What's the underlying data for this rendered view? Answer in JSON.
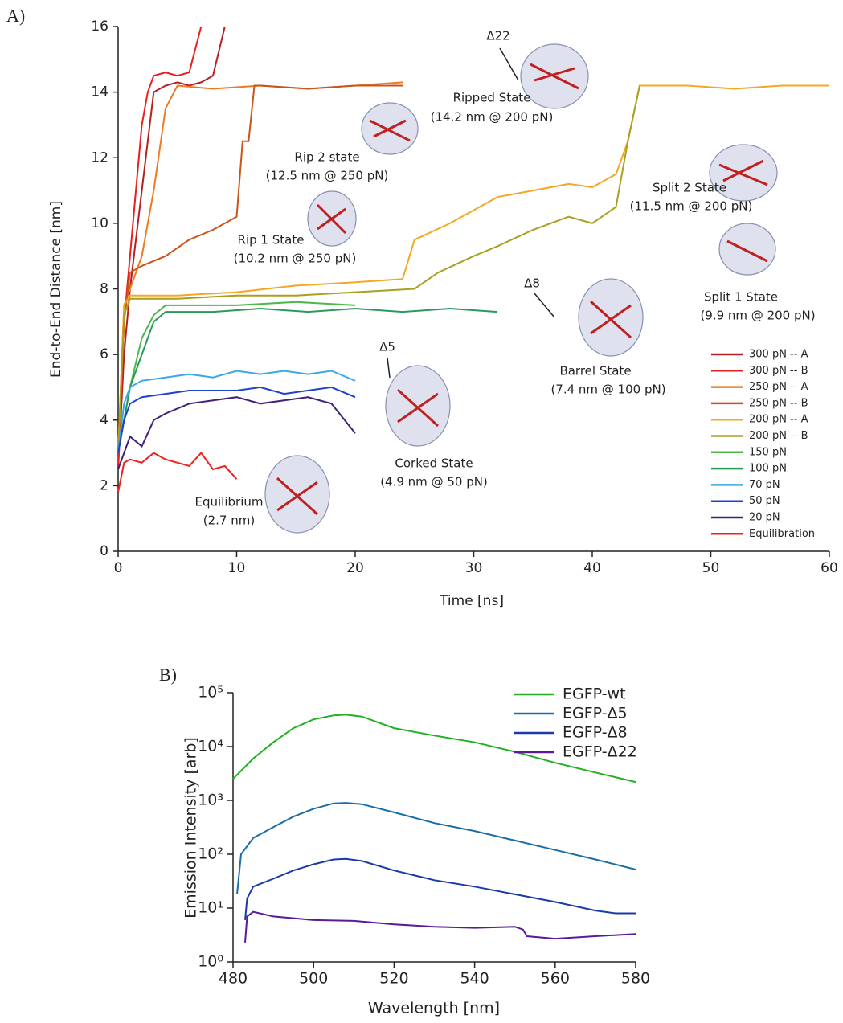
{
  "chart_data": [
    {
      "type": "line",
      "panel_label": "A)",
      "x_label": "Time [ns]",
      "y_label": "End-to-End Distance [nm]",
      "xlim": [
        0,
        60
      ],
      "xticks": [
        0,
        10,
        20,
        30,
        40,
        50,
        60
      ],
      "ylim": [
        0,
        16
      ],
      "yticks": [
        0,
        2,
        4,
        6,
        8,
        10,
        12,
        14,
        16
      ],
      "log_y": false,
      "grid": false,
      "legend": "lower right",
      "annotations": [
        "Δ22",
        "Ripped State",
        "(14.2 nm @ 200 pN)",
        "Rip 2 state",
        "(12.5 nm @ 250 pN)",
        "Rip 1 State",
        "(10.2 nm @ 250 pN)",
        "Split 2 State",
        "(11.5 nm @ 200 pN)",
        "Split 1 State",
        "(9.9 nm @ 200 pN)",
        "Δ8",
        "Barrel State",
        "(7.4 nm @ 100 pN)",
        "Δ5",
        "Corked State",
        "(4.9 nm @ 50 pN)",
        "Equilibrium",
        "(2.7 nm)"
      ],
      "series": [
        {
          "name": "300 pN -- A",
          "color": "#b52020",
          "x": [
            0,
            0.5,
            1,
            1.5,
            2,
            2.5,
            3,
            4,
            5,
            6,
            7,
            8,
            9
          ],
          "values": [
            2.5,
            6,
            8,
            9.5,
            11,
            12.5,
            14,
            14.2,
            14.3,
            14.2,
            14.3,
            14.5,
            16
          ]
        },
        {
          "name": "300 pN -- B",
          "color": "#e8201e",
          "x": [
            0,
            0.5,
            1,
            1.5,
            2,
            2.5,
            3,
            4,
            5,
            6,
            7
          ],
          "values": [
            2.5,
            7,
            9,
            11,
            13,
            14,
            14.5,
            14.6,
            14.5,
            14.6,
            16
          ]
        },
        {
          "name": "250 pN -- A",
          "color": "#f07a20",
          "x": [
            0,
            0.5,
            1,
            2,
            3,
            4,
            5,
            8,
            12,
            16,
            20,
            24
          ],
          "values": [
            3,
            7.5,
            8,
            9,
            11,
            13.5,
            14.2,
            14.1,
            14.2,
            14.1,
            14.2,
            14.3
          ]
        },
        {
          "name": "250 pN -- B",
          "color": "#c8561a",
          "x": [
            0,
            0.5,
            1,
            2,
            4,
            6,
            8,
            10,
            10.5,
            11,
            11.5,
            12,
            16,
            20,
            24
          ],
          "values": [
            3,
            7,
            8.5,
            8.7,
            9,
            9.5,
            9.8,
            10.2,
            12.5,
            12.5,
            14.2,
            14.2,
            14.1,
            14.2,
            14.2
          ]
        },
        {
          "name": "200 pN -- A",
          "color": "#f5a623",
          "x": [
            0,
            0.5,
            1,
            5,
            10,
            15,
            20,
            24,
            25,
            28,
            32,
            35,
            38,
            40,
            42,
            43,
            44,
            48,
            52,
            56,
            60
          ],
          "values": [
            3,
            7.5,
            7.8,
            7.8,
            7.9,
            8.1,
            8.2,
            8.3,
            9.5,
            10,
            10.8,
            11,
            11.2,
            11.1,
            11.5,
            12.5,
            14.2,
            14.2,
            14.1,
            14.2,
            14.2
          ]
        },
        {
          "name": "200 pN -- B",
          "color": "#a8a020",
          "x": [
            0,
            0.5,
            1,
            5,
            10,
            15,
            20,
            25,
            27,
            30,
            32,
            35,
            38,
            40,
            42,
            43,
            44
          ],
          "values": [
            3,
            7.2,
            7.7,
            7.7,
            7.8,
            7.8,
            7.9,
            8,
            8.5,
            9,
            9.3,
            9.8,
            10.2,
            10,
            10.5,
            12.5,
            14.2
          ]
        },
        {
          "name": "150 pN",
          "color": "#4cb848",
          "x": [
            0,
            1,
            2,
            3,
            4,
            6,
            10,
            15,
            20
          ],
          "values": [
            3,
            5,
            6.5,
            7.2,
            7.5,
            7.5,
            7.5,
            7.6,
            7.5
          ]
        },
        {
          "name": "100 pN",
          "color": "#2a9a5a",
          "x": [
            0,
            1,
            2,
            3,
            4,
            8,
            12,
            16,
            20,
            24,
            28,
            32
          ],
          "values": [
            3,
            5,
            6,
            7,
            7.3,
            7.3,
            7.4,
            7.3,
            7.4,
            7.3,
            7.4,
            7.3
          ]
        },
        {
          "name": "70 pN",
          "color": "#3aa8e8",
          "x": [
            0,
            0.5,
            1,
            2,
            4,
            6,
            8,
            10,
            12,
            14,
            16,
            18,
            20
          ],
          "values": [
            3,
            4.5,
            5,
            5.2,
            5.3,
            5.4,
            5.3,
            5.5,
            5.4,
            5.5,
            5.4,
            5.5,
            5.2
          ]
        },
        {
          "name": "50 pN",
          "color": "#2040d0",
          "x": [
            0,
            0.5,
            1,
            2,
            4,
            6,
            8,
            10,
            12,
            14,
            16,
            18,
            20
          ],
          "values": [
            3,
            4,
            4.5,
            4.7,
            4.8,
            4.9,
            4.9,
            4.9,
            5,
            4.8,
            4.9,
            5,
            4.7
          ]
        },
        {
          "name": "20 pN",
          "color": "#40207a",
          "x": [
            0,
            0.5,
            1,
            2,
            3,
            4,
            6,
            8,
            10,
            12,
            14,
            16,
            18,
            20
          ],
          "values": [
            2.5,
            3,
            3.5,
            3.2,
            4,
            4.2,
            4.5,
            4.6,
            4.7,
            4.5,
            4.6,
            4.7,
            4.5,
            3.6
          ]
        },
        {
          "name": "Equilibration",
          "color": "#ee2020",
          "x": [
            0,
            0.5,
            1,
            2,
            3,
            4,
            5,
            6,
            7,
            8,
            9,
            10
          ],
          "values": [
            1.8,
            2.7,
            2.8,
            2.7,
            3,
            2.8,
            2.7,
            2.6,
            3,
            2.5,
            2.6,
            2.2
          ]
        }
      ]
    },
    {
      "type": "line",
      "panel_label": "B)",
      "x_label": "Wavelength [nm]",
      "y_label": "Emission Intensity [arb]",
      "xlim": [
        480,
        580
      ],
      "xticks": [
        480,
        500,
        520,
        540,
        560,
        580
      ],
      "ylim": [
        1,
        100000
      ],
      "yticks": [
        {
          "value": 1,
          "label": "10⁰"
        },
        {
          "value": 10,
          "label": "10¹"
        },
        {
          "value": 100,
          "label": "10²"
        },
        {
          "value": 1000,
          "label": "10³"
        },
        {
          "value": 10000,
          "label": "10⁴"
        },
        {
          "value": 100000,
          "label": "10⁵"
        }
      ],
      "log_y": true,
      "grid": false,
      "legend": "upper right",
      "series": [
        {
          "name": "EGFP-wt",
          "color": "#22b022",
          "x": [
            480,
            485,
            490,
            495,
            500,
            505,
            508,
            512,
            520,
            530,
            540,
            550,
            560,
            570,
            580
          ],
          "values": [
            2500,
            6000,
            12000,
            22000,
            32000,
            38000,
            39000,
            36000,
            22000,
            16000,
            12000,
            8000,
            5000,
            3300,
            2200
          ]
        },
        {
          "name": "EGFP-Δ5",
          "color": "#1a6ea8",
          "x": [
            481,
            482,
            485,
            490,
            495,
            500,
            505,
            508,
            512,
            520,
            530,
            540,
            550,
            560,
            570,
            580
          ],
          "values": [
            18,
            100,
            200,
            320,
            500,
            700,
            880,
            900,
            850,
            600,
            380,
            270,
            180,
            120,
            80,
            52
          ]
        },
        {
          "name": "EGFP-Δ8",
          "color": "#1a3aa8",
          "x": [
            483,
            483.5,
            485,
            490,
            495,
            500,
            505,
            508,
            512,
            520,
            530,
            540,
            550,
            560,
            570,
            575,
            580
          ],
          "values": [
            6,
            15,
            25,
            35,
            50,
            65,
            80,
            82,
            75,
            50,
            33,
            25,
            18,
            13,
            9,
            8,
            8
          ]
        },
        {
          "name": "EGFP-Δ22",
          "color": "#5a1a9a",
          "x": [
            483,
            483.5,
            485,
            490,
            500,
            510,
            520,
            530,
            540,
            550,
            552,
            553,
            560,
            570,
            580
          ],
          "values": [
            2.3,
            7,
            8.5,
            7,
            6,
            5.8,
            5,
            4.5,
            4.3,
            4.5,
            4,
            3,
            2.7,
            3,
            3.3
          ]
        }
      ]
    }
  ]
}
